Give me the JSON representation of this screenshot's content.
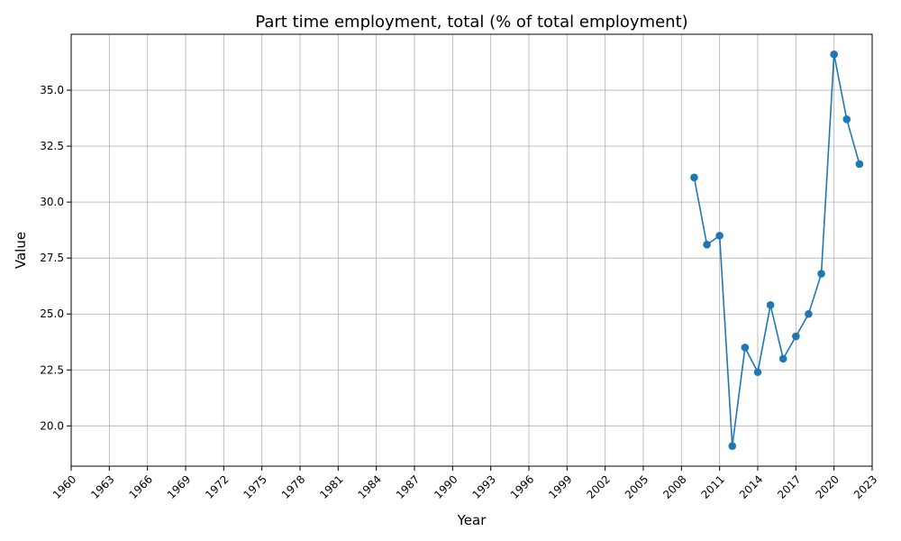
{
  "chart_data": {
    "type": "line",
    "title": "Part time employment, total (% of total employment)",
    "xlabel": "Year",
    "ylabel": "Value",
    "xlim": [
      1960,
      2023
    ],
    "ylim": [
      18.2,
      37.5
    ],
    "x_ticks": [
      1960,
      1963,
      1966,
      1969,
      1972,
      1975,
      1978,
      1981,
      1984,
      1987,
      1990,
      1993,
      1996,
      1999,
      2002,
      2005,
      2008,
      2011,
      2014,
      2017,
      2020,
      2023
    ],
    "y_ticks": [
      20.0,
      22.5,
      25.0,
      27.5,
      30.0,
      32.5,
      35.0
    ],
    "y_tick_labels": [
      "20.0",
      "22.5",
      "25.0",
      "27.5",
      "30.0",
      "32.5",
      "35.0"
    ],
    "grid": true,
    "color": "#1f77b4",
    "series": [
      {
        "x": [
          2009,
          2010,
          2011,
          2012,
          2013,
          2014,
          2015,
          2016,
          2017,
          2018,
          2019,
          2020,
          2021,
          2022
        ],
        "values": [
          31.1,
          28.1,
          28.5,
          19.1,
          23.5,
          22.4,
          25.4,
          23.0,
          24.0,
          25.0,
          26.8,
          36.6,
          33.7,
          31.7
        ]
      }
    ]
  }
}
